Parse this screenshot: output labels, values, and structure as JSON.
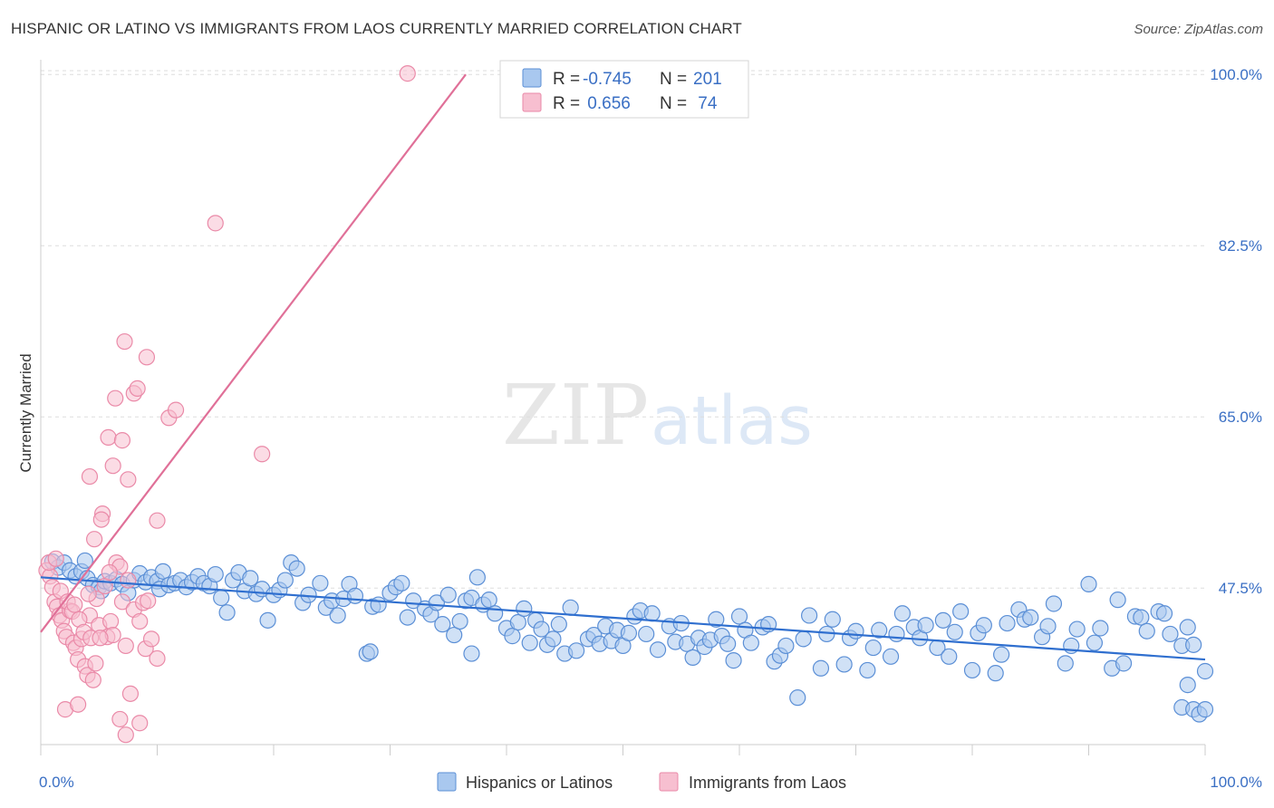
{
  "title": "HISPANIC OR LATINO VS IMMIGRANTS FROM LAOS CURRENTLY MARRIED CORRELATION CHART",
  "source": "Source: ZipAtlas.com",
  "watermark": {
    "zip": "ZIP",
    "atlas": "atlas"
  },
  "colors": {
    "blue_fill": "#a9c8ef",
    "blue_stroke": "#5b8fd6",
    "blue_line": "#2f6fcf",
    "pink_fill": "#f7bfd0",
    "pink_stroke": "#ea8aa8",
    "pink_line": "#e07098",
    "axis_label": "#3a6fc4",
    "grid": "#dddddd"
  },
  "legend_top": {
    "rows": [
      {
        "r_label": "R =",
        "r_value": "-0.745",
        "n_label": "N =",
        "n_value": "201"
      },
      {
        "r_label": "R =",
        "r_value": " 0.656",
        "n_label": "N =",
        "n_value": " 74"
      }
    ]
  },
  "legend_bottom": {
    "items": [
      {
        "label": "Hispanics or Latinos"
      },
      {
        "label": "Immigrants from Laos"
      }
    ]
  },
  "chart_data": {
    "type": "scatter",
    "xlabel": "",
    "ylabel": "Currently Married",
    "xlim": [
      0,
      100
    ],
    "ylim": [
      31.5,
      101.5
    ],
    "x_tick_labels": {
      "left": "0.0%",
      "right": "100.0%"
    },
    "y_ticks": [
      {
        "value": 100.0,
        "label": "100.0%"
      },
      {
        "value": 82.5,
        "label": "82.5%"
      },
      {
        "value": 65.0,
        "label": "65.0%"
      },
      {
        "value": 47.5,
        "label": "47.5%"
      }
    ],
    "grid": "horizontal dashed",
    "legend_placement": "top-center",
    "series": [
      {
        "name": "Hispanics or Latinos",
        "color": "#a9c8ef",
        "trend": {
          "x": [
            0,
            100
          ],
          "y": [
            48.6,
            40.2
          ]
        },
        "points": [
          [
            1,
            50.2
          ],
          [
            1.5,
            49.6
          ],
          [
            2,
            50.1
          ],
          [
            2.5,
            49.3
          ],
          [
            3,
            48.7
          ],
          [
            3.5,
            49.2
          ],
          [
            3.8,
            50.3
          ],
          [
            4,
            48.5
          ],
          [
            4.5,
            47.8
          ],
          [
            5,
            47.6
          ],
          [
            5.2,
            47.2
          ],
          [
            5.5,
            48.2
          ],
          [
            6,
            48.0
          ],
          [
            6.5,
            48.4
          ],
          [
            7,
            47.9
          ],
          [
            7.5,
            47.0
          ],
          [
            8,
            48.3
          ],
          [
            8.5,
            49.0
          ],
          [
            9,
            48.1
          ],
          [
            9.5,
            48.6
          ],
          [
            10,
            48.2
          ],
          [
            10.2,
            47.4
          ],
          [
            10.5,
            49.2
          ],
          [
            11,
            47.8
          ],
          [
            11.5,
            48.0
          ],
          [
            12,
            48.3
          ],
          [
            12.5,
            47.6
          ],
          [
            13,
            48.1
          ],
          [
            13.5,
            48.7
          ],
          [
            14,
            48.0
          ],
          [
            14.5,
            47.7
          ],
          [
            15,
            48.9
          ],
          [
            15.5,
            46.5
          ],
          [
            16,
            45.0
          ],
          [
            16.5,
            48.3
          ],
          [
            17,
            49.1
          ],
          [
            17.5,
            47.2
          ],
          [
            18,
            48.5
          ],
          [
            18.5,
            46.9
          ],
          [
            19,
            47.4
          ],
          [
            19.5,
            44.2
          ],
          [
            20,
            46.8
          ],
          [
            20.5,
            47.3
          ],
          [
            21,
            48.3
          ],
          [
            21.5,
            50.1
          ],
          [
            22,
            49.5
          ],
          [
            22.5,
            46.0
          ],
          [
            23,
            46.8
          ],
          [
            24,
            48.0
          ],
          [
            24.5,
            45.5
          ],
          [
            25,
            46.2
          ],
          [
            25.5,
            44.7
          ],
          [
            26,
            46.4
          ],
          [
            26.5,
            47.9
          ],
          [
            27,
            46.7
          ],
          [
            28,
            40.8
          ],
          [
            28.3,
            41.0
          ],
          [
            28.5,
            45.6
          ],
          [
            29,
            45.8
          ],
          [
            30,
            47.0
          ],
          [
            30.5,
            47.6
          ],
          [
            31,
            48.0
          ],
          [
            31.5,
            44.5
          ],
          [
            32,
            46.2
          ],
          [
            33,
            45.4
          ],
          [
            33.5,
            44.8
          ],
          [
            34,
            46.0
          ],
          [
            34.5,
            43.8
          ],
          [
            35,
            46.8
          ],
          [
            35.5,
            42.7
          ],
          [
            36,
            44.1
          ],
          [
            36.5,
            46.2
          ],
          [
            37,
            46.5
          ],
          [
            37.5,
            48.6
          ],
          [
            38,
            45.8
          ],
          [
            38.5,
            46.3
          ],
          [
            39,
            44.9
          ],
          [
            40,
            43.4
          ],
          [
            40.5,
            42.6
          ],
          [
            41,
            44.0
          ],
          [
            41.5,
            45.4
          ],
          [
            42,
            41.9
          ],
          [
            42.5,
            44.2
          ],
          [
            43,
            43.3
          ],
          [
            43.5,
            41.7
          ],
          [
            44,
            42.3
          ],
          [
            44.5,
            43.8
          ],
          [
            45,
            40.8
          ],
          [
            45.5,
            45.5
          ],
          [
            46,
            41.1
          ],
          [
            47,
            42.3
          ],
          [
            47.5,
            42.7
          ],
          [
            48,
            41.8
          ],
          [
            48.5,
            43.6
          ],
          [
            49,
            42.1
          ],
          [
            49.5,
            43.2
          ],
          [
            50,
            41.6
          ],
          [
            50.5,
            42.9
          ],
          [
            51,
            44.6
          ],
          [
            51.5,
            45.2
          ],
          [
            52,
            42.8
          ],
          [
            52.5,
            44.9
          ],
          [
            53,
            41.2
          ],
          [
            54,
            43.6
          ],
          [
            54.5,
            42.0
          ],
          [
            55,
            43.9
          ],
          [
            55.5,
            41.8
          ],
          [
            56,
            40.4
          ],
          [
            56.5,
            42.4
          ],
          [
            57,
            41.5
          ],
          [
            57.5,
            42.2
          ],
          [
            58,
            44.3
          ],
          [
            58.5,
            42.6
          ],
          [
            59,
            41.8
          ],
          [
            60,
            44.6
          ],
          [
            60.5,
            43.2
          ],
          [
            61,
            41.9
          ],
          [
            62,
            43.5
          ],
          [
            62.5,
            43.8
          ],
          [
            63,
            40.0
          ],
          [
            63.5,
            40.6
          ],
          [
            64,
            41.6
          ],
          [
            65,
            36.3
          ],
          [
            65.5,
            42.3
          ],
          [
            66,
            44.7
          ],
          [
            67,
            39.3
          ],
          [
            67.5,
            42.8
          ],
          [
            68,
            44.3
          ],
          [
            69,
            39.7
          ],
          [
            69.5,
            42.4
          ],
          [
            70,
            43.1
          ],
          [
            71,
            39.1
          ],
          [
            71.5,
            41.4
          ],
          [
            72,
            43.2
          ],
          [
            73,
            40.5
          ],
          [
            73.5,
            42.8
          ],
          [
            74,
            44.9
          ],
          [
            75,
            43.5
          ],
          [
            75.5,
            42.4
          ],
          [
            76,
            43.7
          ],
          [
            77,
            41.4
          ],
          [
            77.5,
            44.2
          ],
          [
            78,
            40.5
          ],
          [
            78.5,
            43.0
          ],
          [
            79,
            45.1
          ],
          [
            80,
            39.1
          ],
          [
            80.5,
            42.9
          ],
          [
            81,
            43.7
          ],
          [
            82,
            38.8
          ],
          [
            82.5,
            40.7
          ],
          [
            83,
            43.9
          ],
          [
            84,
            45.3
          ],
          [
            84.5,
            44.3
          ],
          [
            85,
            44.5
          ],
          [
            86,
            42.5
          ],
          [
            86.5,
            43.6
          ],
          [
            87,
            45.9
          ],
          [
            88,
            39.8
          ],
          [
            88.5,
            41.6
          ],
          [
            89,
            43.3
          ],
          [
            90,
            47.9
          ],
          [
            90.5,
            41.9
          ],
          [
            91,
            43.4
          ],
          [
            92,
            39.3
          ],
          [
            92.5,
            46.3
          ],
          [
            93,
            39.8
          ],
          [
            94,
            44.6
          ],
          [
            94.5,
            44.5
          ],
          [
            95,
            43.1
          ],
          [
            96,
            45.1
          ],
          [
            96.5,
            44.9
          ],
          [
            97,
            42.8
          ],
          [
            98,
            41.6
          ],
          [
            98.5,
            43.5
          ],
          [
            99,
            41.7
          ],
          [
            100,
            39.0
          ],
          [
            98,
            35.3
          ],
          [
            99,
            35.1
          ],
          [
            99.5,
            34.6
          ],
          [
            100,
            35.1
          ],
          [
            98.5,
            37.6
          ],
          [
            37,
            40.8
          ],
          [
            59.5,
            40.1
          ]
        ]
      },
      {
        "name": "Immigrants from Laos",
        "color": "#f7bfd0",
        "trend": {
          "x": [
            0,
            36.5
          ],
          "y": [
            43.0,
            100.0
          ]
        },
        "points": [
          [
            0.5,
            49.3
          ],
          [
            0.8,
            48.7
          ],
          [
            1,
            47.6
          ],
          [
            1.2,
            46.1
          ],
          [
            1.4,
            45.6
          ],
          [
            1.6,
            44.7
          ],
          [
            1.8,
            44.2
          ],
          [
            2,
            43.1
          ],
          [
            2.2,
            42.5
          ],
          [
            2.5,
            45.2
          ],
          [
            2.8,
            41.9
          ],
          [
            3,
            41.4
          ],
          [
            3.2,
            40.2
          ],
          [
            3.5,
            42.3
          ],
          [
            3.8,
            39.5
          ],
          [
            4,
            38.6
          ],
          [
            4.2,
            44.7
          ],
          [
            4.5,
            38.1
          ],
          [
            4.8,
            46.4
          ],
          [
            5,
            43.7
          ],
          [
            5.5,
            47.7
          ],
          [
            5.7,
            42.5
          ],
          [
            6,
            44.1
          ],
          [
            6.5,
            50.1
          ],
          [
            6.8,
            49.7
          ],
          [
            7,
            46.1
          ],
          [
            7.5,
            48.3
          ],
          [
            8,
            45.3
          ],
          [
            8.5,
            44.1
          ],
          [
            9,
            41.3
          ],
          [
            9.5,
            42.3
          ],
          [
            10,
            40.3
          ],
          [
            0.7,
            50.1
          ],
          [
            1.3,
            50.5
          ],
          [
            1.7,
            47.2
          ],
          [
            2.3,
            46.1
          ],
          [
            2.7,
            45.1
          ],
          [
            3.3,
            44.3
          ],
          [
            3.7,
            43.0
          ],
          [
            4.3,
            42.4
          ],
          [
            4.7,
            39.8
          ],
          [
            5.3,
            55.1
          ],
          [
            5.9,
            49.1
          ],
          [
            6.2,
            42.7
          ],
          [
            7.3,
            41.6
          ],
          [
            7.7,
            36.7
          ],
          [
            4.2,
            58.9
          ],
          [
            4.6,
            52.5
          ],
          [
            5.2,
            54.5
          ],
          [
            5.8,
            62.9
          ],
          [
            6.2,
            60.0
          ],
          [
            6.4,
            66.9
          ],
          [
            7.0,
            62.6
          ],
          [
            7.2,
            72.7
          ],
          [
            7.5,
            58.6
          ],
          [
            8,
            67.4
          ],
          [
            8.3,
            67.9
          ],
          [
            8.8,
            46.0
          ],
          [
            9.1,
            71.1
          ],
          [
            10,
            54.4
          ],
          [
            11,
            64.9
          ],
          [
            11.6,
            65.7
          ],
          [
            15,
            84.8
          ],
          [
            19,
            61.2
          ],
          [
            31.5,
            100.1
          ],
          [
            8.5,
            33.7
          ],
          [
            6.8,
            34.1
          ],
          [
            7.3,
            32.5
          ],
          [
            2.1,
            35.1
          ],
          [
            3.2,
            35.6
          ],
          [
            4.1,
            46.9
          ],
          [
            5.1,
            42.4
          ],
          [
            2.9,
            45.8
          ],
          [
            9.2,
            46.2
          ]
        ]
      }
    ]
  }
}
